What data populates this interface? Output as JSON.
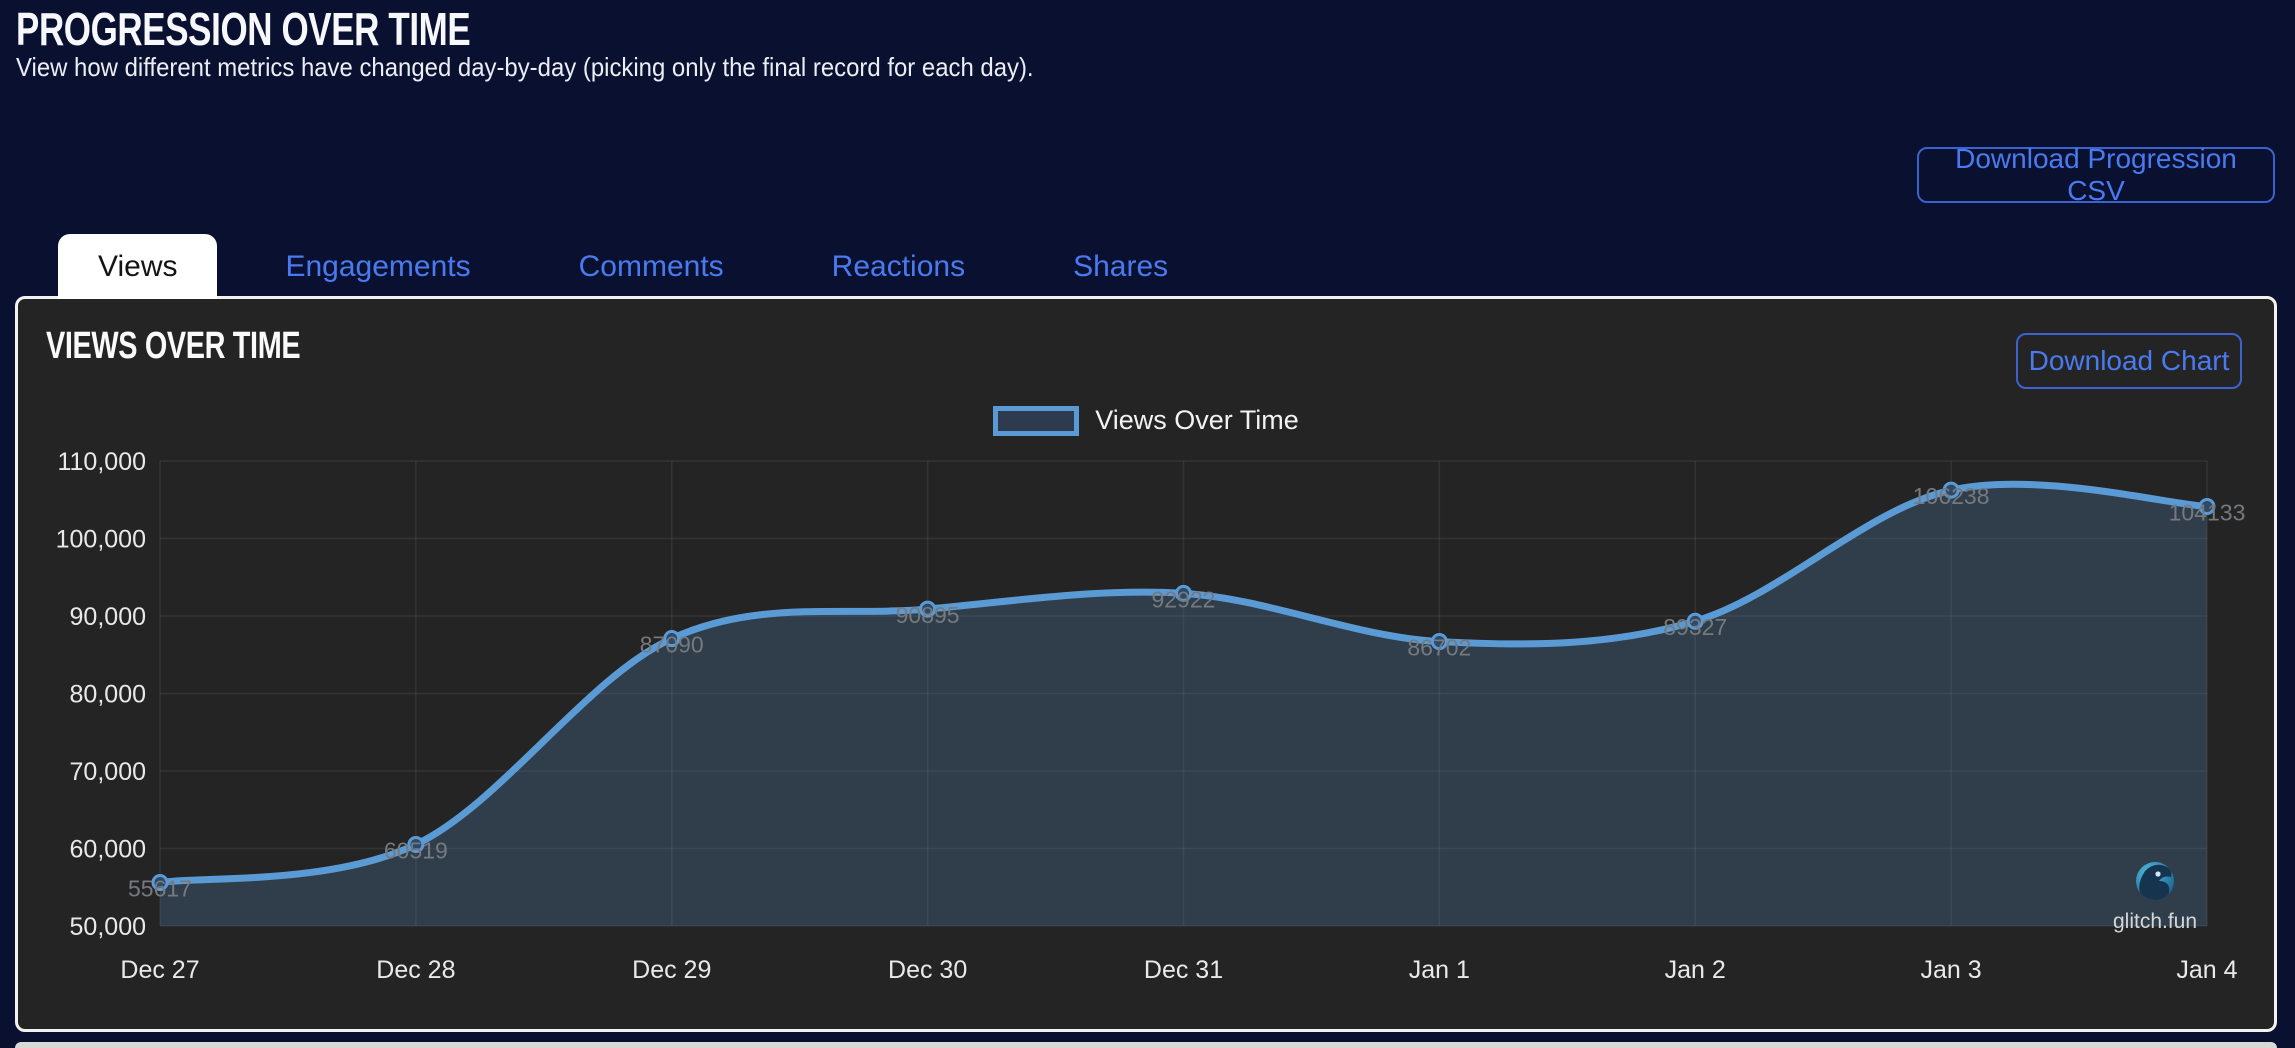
{
  "page": {
    "title": "PROGRESSION OVER TIME",
    "subtitle": "View how different metrics have changed day-by-day (picking only the final record for each day).",
    "download_csv_label": "Download Progression CSV"
  },
  "tabs": {
    "items": [
      {
        "label": "Views",
        "active": true
      },
      {
        "label": "Engagements",
        "active": false
      },
      {
        "label": "Comments",
        "active": false
      },
      {
        "label": "Reactions",
        "active": false
      },
      {
        "label": "Shares",
        "active": false
      }
    ]
  },
  "panel": {
    "title": "VIEWS OVER TIME",
    "download_chart_label": "Download Chart",
    "watermark_text": "glitch.fun"
  },
  "chart_data": {
    "type": "line",
    "title": "Views Over Time",
    "categories": [
      "Dec 27",
      "Dec 28",
      "Dec 29",
      "Dec 30",
      "Dec 31",
      "Jan 1",
      "Jan 2",
      "Jan 3",
      "Jan 4"
    ],
    "series": [
      {
        "name": "Views Over Time",
        "values": [
          55617,
          60519,
          87090,
          90895,
          92922,
          86702,
          89327,
          106238,
          104133
        ]
      }
    ],
    "ylim": [
      50000,
      110000
    ],
    "ytick_step": 10000,
    "ytick_labels": [
      "50,000",
      "60,000",
      "70,000",
      "80,000",
      "90,000",
      "100,000",
      "110,000"
    ],
    "grid": true,
    "legend_position": "top-center",
    "area_fill": true,
    "show_point_labels": true
  },
  "colors": {
    "page_bg": "#0a1130",
    "panel_bg": "#242424",
    "accent_blue": "#4a7af0",
    "line_blue": "#5b9bd5",
    "area_fill": "rgba(91,155,213,0.22)",
    "grid_line": "rgba(255,255,255,0.07)",
    "tick_label": "#e9e9e9",
    "point_label": "#76797e"
  }
}
